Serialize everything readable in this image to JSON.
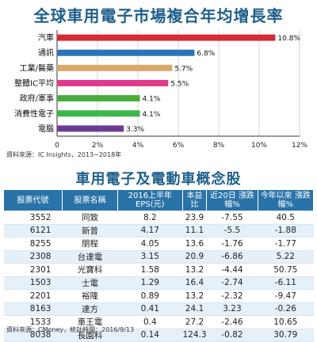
{
  "chart_data": {
    "type": "bar",
    "orientation": "horizontal",
    "title": "全球車用電子市場複合年均增長率",
    "categories": [
      "汽車",
      "通訊",
      "工業/醫藥",
      "整體IC平均",
      "政府/軍事",
      "消費性電子",
      "電腦"
    ],
    "values": [
      10.8,
      6.8,
      5.7,
      5.5,
      4.1,
      4.1,
      3.3
    ],
    "value_labels": [
      "10.8%",
      "6.8%",
      "5.7%",
      "5.5%",
      "4.1%",
      "4.1%",
      "3.3%"
    ],
    "colors": [
      "#d62b33",
      "#2a73b8",
      "#d9a96b",
      "#e03a8c",
      "#4aaa3c",
      "#3cb84a",
      "#6b3c96"
    ],
    "xlim": [
      0,
      12
    ],
    "xticks": [
      "0",
      "2%",
      "4%",
      "6%",
      "8%",
      "10%",
      "12%"
    ],
    "grid": true
  },
  "chart_source": "資料來源：IC Insights，2013∼2018年",
  "table": {
    "title": "車用電子及電動車概念股",
    "headers": [
      "股票代號",
      "股票名稱",
      "2016上半年 EPS(元)",
      "本益比",
      "近20日 漲跌幅%",
      "今年以來 漲跌幅%"
    ],
    "rows": [
      [
        "3552",
        "同致",
        "8.2",
        "23.9",
        "-7.55",
        "40.5"
      ],
      [
        "6121",
        "新普",
        "4.17",
        "11.1",
        "-5.5",
        "-1.88"
      ],
      [
        "8255",
        "朋程",
        "4.05",
        "13.6",
        "-1.76",
        "-1.77"
      ],
      [
        "2308",
        "台達電",
        "3.15",
        "20.9",
        "-6.86",
        "5.22"
      ],
      [
        "2301",
        "光寶科",
        "1.58",
        "13.2",
        "-4.44",
        "50.75"
      ],
      [
        "1503",
        "士電",
        "1.29",
        "16.4",
        "-2.74",
        "-6.11"
      ],
      [
        "2201",
        "裕隆",
        "0.89",
        "13.2",
        "-2.32",
        "-9.47"
      ],
      [
        "8163",
        "達方",
        "0.41",
        "24.1",
        "3.23",
        "-0.26"
      ],
      [
        "1533",
        "車王電",
        "0.4",
        "27.2",
        "-2.46",
        "10.65"
      ],
      [
        "8038",
        "長園科",
        "0.14",
        "124.3",
        "-0.82",
        "30.79"
      ]
    ],
    "source": "資料來源：CMoney，統計時間：2016/9/13"
  }
}
